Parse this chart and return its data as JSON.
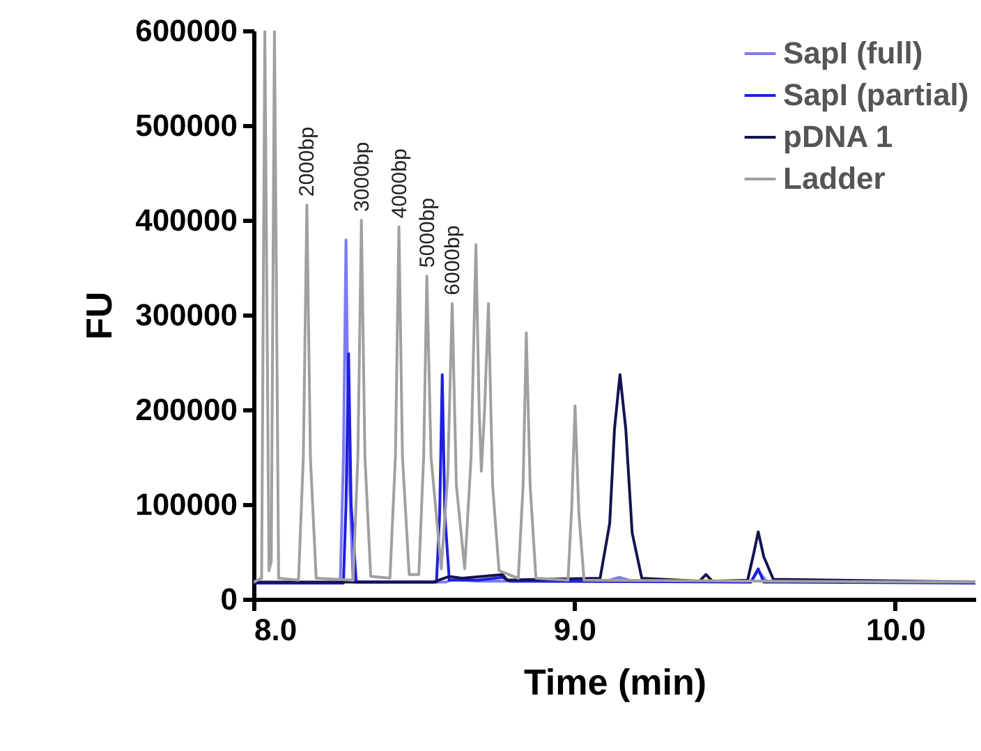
{
  "chart_data": {
    "type": "line",
    "xlabel": "Time (min)",
    "ylabel": "FU",
    "xlim": [
      8.0,
      10.25
    ],
    "ylim": [
      0,
      600000
    ],
    "xticks": [
      {
        "value": 8,
        "label": "8.0"
      },
      {
        "value": 9,
        "label": "9.0"
      },
      {
        "value": 10,
        "label": "10.0"
      }
    ],
    "yticks": [
      0,
      100000,
      200000,
      300000,
      400000,
      500000,
      600000
    ],
    "grid": false,
    "legend": "top right",
    "line_style": "solid",
    "series": [
      {
        "name": "SapI (full)",
        "color": "#7b7bf5",
        "x": [
          8.0,
          8.27,
          8.28,
          8.288,
          8.296,
          8.31,
          8.6,
          8.62,
          8.7,
          9.1,
          9.14,
          9.18,
          9.55,
          9.573,
          9.6
        ],
        "values": [
          17000,
          17000,
          150000,
          379000,
          150000,
          18000,
          18000,
          21000,
          19000,
          19000,
          23000,
          19000,
          18000,
          30000,
          18000
        ]
      },
      {
        "name": "SapI (partial)",
        "color": "#1f1fe0",
        "x": [
          8.0,
          8.28,
          8.288,
          8.296,
          8.304,
          8.32,
          8.57,
          8.58,
          8.588,
          8.596,
          8.61,
          8.7,
          8.776,
          8.8,
          9.55,
          9.573,
          9.59,
          10.25
        ],
        "values": [
          17000,
          17000,
          100000,
          259000,
          100000,
          18000,
          18000,
          90000,
          237000,
          90000,
          20000,
          20000,
          23000,
          19000,
          18000,
          32000,
          18000,
          17000
        ]
      },
      {
        "name": "pDNA 1",
        "color": "#141450",
        "x": [
          8.0,
          8.56,
          8.61,
          8.65,
          8.776,
          8.79,
          8.9,
          9.08,
          9.11,
          9.125,
          9.142,
          9.16,
          9.18,
          9.21,
          9.39,
          9.41,
          9.43,
          9.54,
          9.56,
          9.573,
          9.59,
          9.62,
          10.25
        ],
        "values": [
          18000,
          18000,
          24000,
          22000,
          26000,
          20000,
          21000,
          22000,
          80000,
          180000,
          237000,
          180000,
          70000,
          22000,
          19000,
          26000,
          19000,
          20000,
          50000,
          71000,
          45000,
          21000,
          18000
        ]
      },
      {
        "name": "Ladder",
        "color": "#a0a0a0",
        "x": [
          8.0,
          8.025,
          8.035,
          8.048,
          8.055,
          8.065,
          8.078,
          8.14,
          8.155,
          8.166,
          8.177,
          8.195,
          8.31,
          8.325,
          8.336,
          8.347,
          8.365,
          8.425,
          8.442,
          8.453,
          8.464,
          8.485,
          8.515,
          8.53,
          8.54,
          8.553,
          8.585,
          8.605,
          8.619,
          8.632,
          8.658,
          8.678,
          8.693,
          8.703,
          8.71,
          8.72,
          8.732,
          8.745,
          8.765,
          8.825,
          8.84,
          8.85,
          8.862,
          8.88,
          8.98,
          8.992,
          9.002,
          9.014,
          9.03,
          10.25
        ],
        "values": [
          18000,
          22000,
          600000,
          30000,
          40000,
          600000,
          22000,
          20000,
          150000,
          416000,
          150000,
          22000,
          20000,
          150000,
          400000,
          150000,
          24000,
          22000,
          150000,
          393000,
          150000,
          26000,
          26000,
          150000,
          341000,
          150000,
          32000,
          130000,
          312000,
          120000,
          32000,
          150000,
          374000,
          200000,
          135000,
          200000,
          312000,
          120000,
          30000,
          22000,
          120000,
          281000,
          120000,
          22000,
          20000,
          100000,
          204000,
          90000,
          20000,
          18000
        ]
      }
    ],
    "annotations": [
      {
        "text": "2000bp",
        "x": 8.166,
        "y": 416000
      },
      {
        "text": "3000bp",
        "x": 8.336,
        "y": 400000
      },
      {
        "text": "4000bp",
        "x": 8.453,
        "y": 393000
      },
      {
        "text": "5000bp",
        "x": 8.54,
        "y": 341000
      },
      {
        "text": "6000bp",
        "x": 8.619,
        "y": 312000
      }
    ]
  }
}
